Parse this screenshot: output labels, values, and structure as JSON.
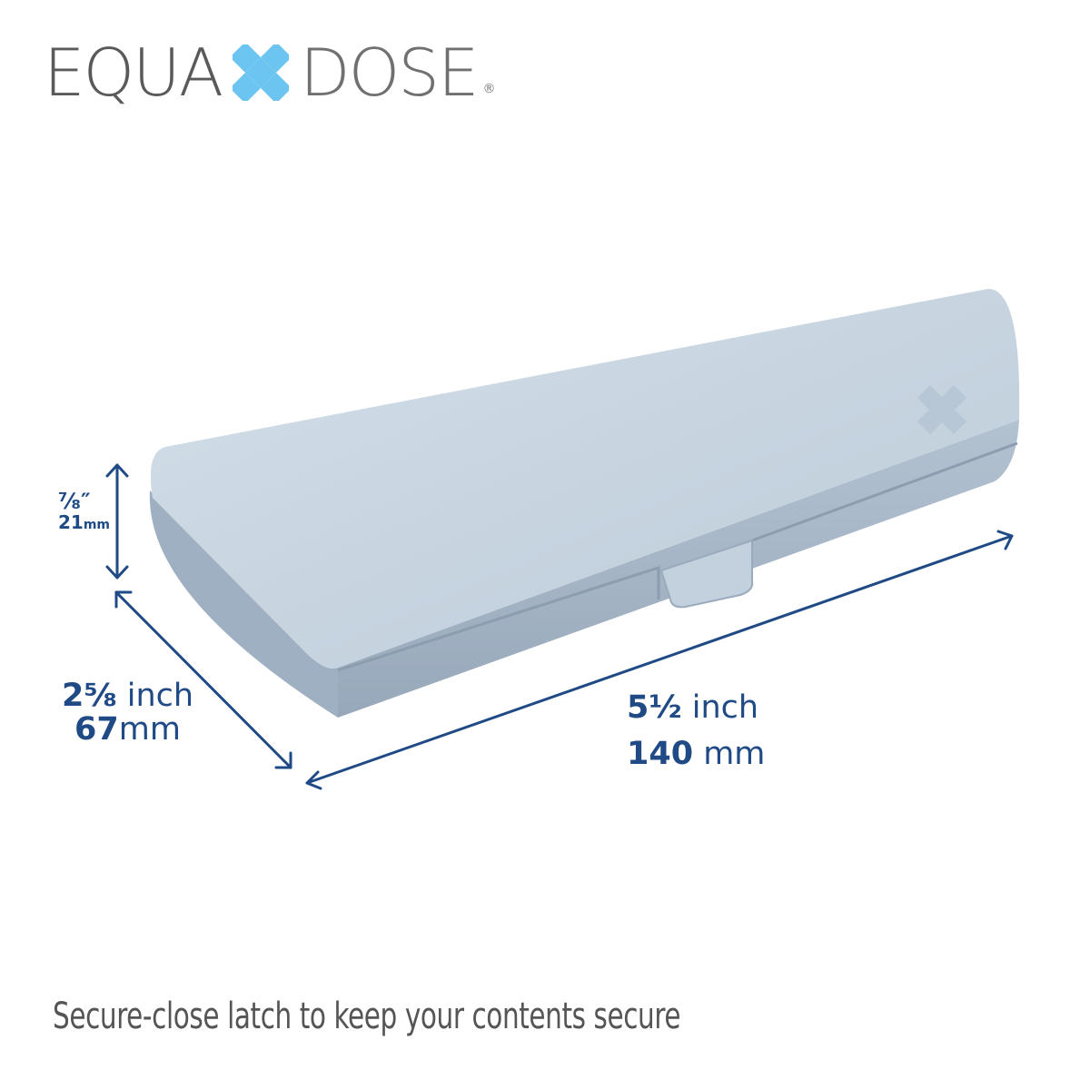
{
  "brand": {
    "left": "EQUA",
    "right": "DOSE",
    "registered": "®",
    "accent": "#6cc4f0"
  },
  "dimensions": {
    "height": {
      "imperial": "⁷⁄₈″",
      "metric_value": "21",
      "metric_unit": "mm"
    },
    "depth": {
      "imperial_value": "2⅝",
      "imperial_unit": " inch",
      "metric_value": "67",
      "metric_unit": "mm"
    },
    "length": {
      "imperial_value": "5½",
      "imperial_unit": " inch",
      "metric_value": "140",
      "metric_unit": " mm"
    }
  },
  "caption": "Secure-close latch to keep your contents secure",
  "colors": {
    "dimension": "#1f4a85",
    "box_top": "#c7d5e1",
    "box_side": "#a9b8c8"
  }
}
